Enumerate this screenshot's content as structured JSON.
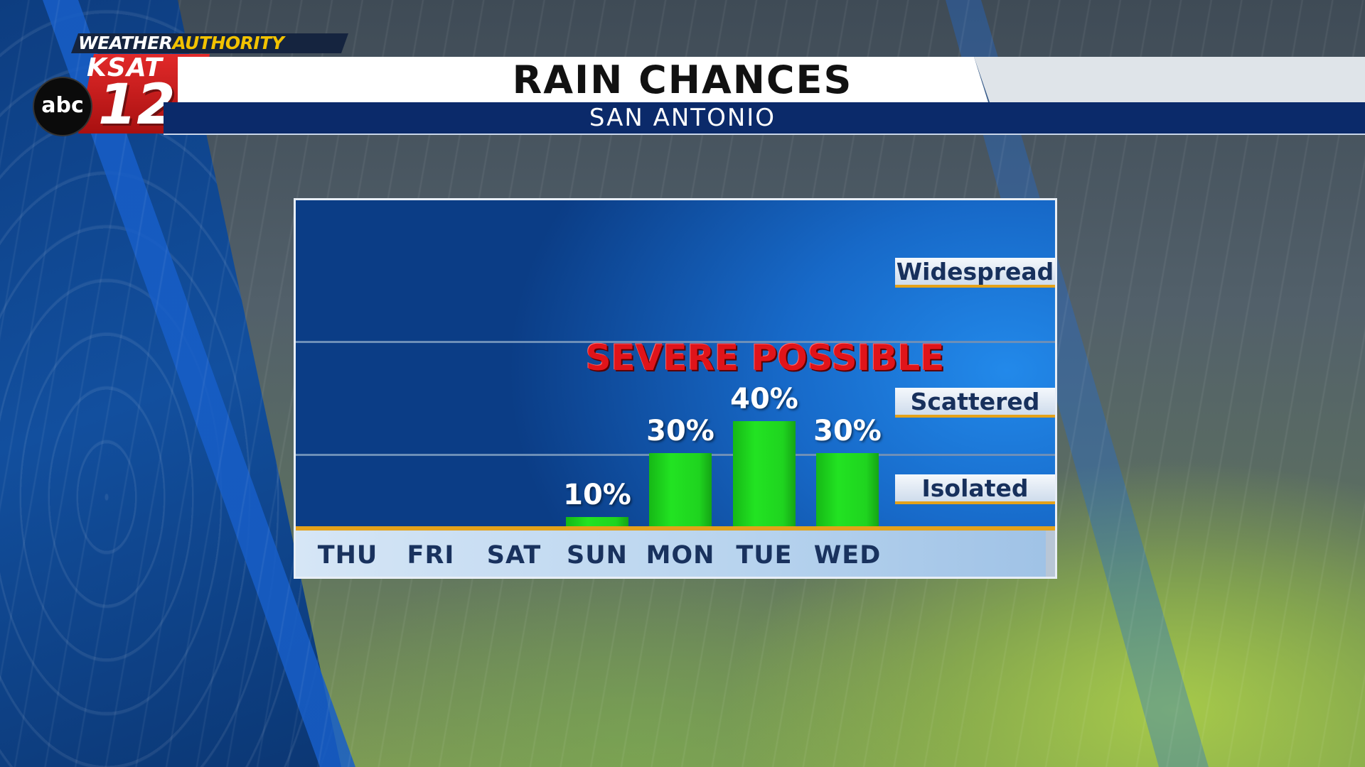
{
  "brand": {
    "weather_part1": "WEATHER",
    "weather_part2": "AUTHORITY",
    "station": "KSAT",
    "channel": "12",
    "network": "abc",
    "accent_yellow": "#f2c200",
    "accent_red": "#e22a2a"
  },
  "header": {
    "title": "RAIN CHANCES",
    "subtitle": "SAN ANTONIO"
  },
  "chart_data": {
    "type": "bar",
    "title": "RAIN CHANCES",
    "subtitle": "SAN ANTONIO",
    "categories": [
      "THU",
      "FRI",
      "SAT",
      "SUN",
      "MON",
      "TUE",
      "WED"
    ],
    "values": [
      0,
      0,
      0,
      10,
      30,
      40,
      30
    ],
    "value_labels": [
      "",
      "",
      "",
      "10%",
      "30%",
      "40%",
      "30%"
    ],
    "unit": "%",
    "ylim": [
      0,
      100
    ],
    "levels": [
      {
        "label": "Isolated",
        "upper": 30
      },
      {
        "label": "Scattered",
        "upper": 60
      },
      {
        "label": "Widespread",
        "upper": 100
      }
    ],
    "annotation": "SEVERE POSSIBLE",
    "bar_color": "#22e322",
    "annotation_color": "#e0141a",
    "grid": false,
    "legend": "none"
  }
}
